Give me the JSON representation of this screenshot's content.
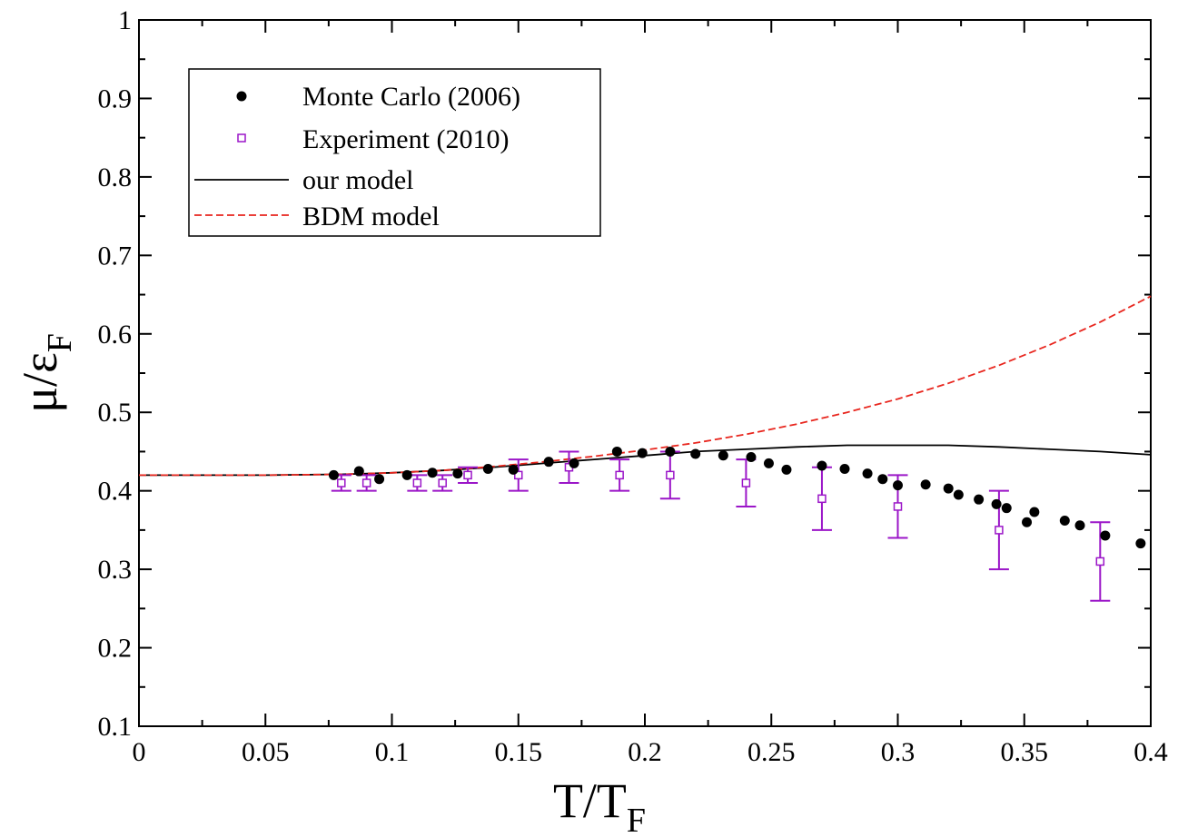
{
  "chart_data": {
    "type": "scatter",
    "xlabel": "T/T",
    "xlabel_sub": "F",
    "ylabel": "μ/ε",
    "ylabel_sub": "F",
    "xlim": [
      0,
      0.4
    ],
    "ylim": [
      0.1,
      1.0
    ],
    "xticks": [
      "0",
      "0.05",
      "0.1",
      "0.15",
      "0.2",
      "0.25",
      "0.3",
      "0.35",
      "0.4"
    ],
    "yticks": [
      "0.1",
      "0.2",
      "0.3",
      "0.4",
      "0.5",
      "0.6",
      "0.7",
      "0.8",
      "0.9",
      "1"
    ],
    "legend_position": "top-left",
    "grid": false,
    "series": [
      {
        "name": "Monte Carlo (2006)",
        "kind": "points",
        "color": "#000000",
        "x": [
          0.077,
          0.087,
          0.095,
          0.106,
          0.116,
          0.126,
          0.138,
          0.148,
          0.162,
          0.172,
          0.189,
          0.199,
          0.21,
          0.22,
          0.231,
          0.242,
          0.249,
          0.256,
          0.27,
          0.279,
          0.288,
          0.294,
          0.3,
          0.311,
          0.32,
          0.324,
          0.332,
          0.339,
          0.343,
          0.351,
          0.354,
          0.366,
          0.372,
          0.382,
          0.396
        ],
        "y": [
          0.42,
          0.425,
          0.415,
          0.42,
          0.423,
          0.422,
          0.428,
          0.427,
          0.437,
          0.435,
          0.45,
          0.448,
          0.45,
          0.447,
          0.445,
          0.443,
          0.435,
          0.427,
          0.432,
          0.428,
          0.422,
          0.415,
          0.407,
          0.408,
          0.403,
          0.395,
          0.389,
          0.383,
          0.378,
          0.36,
          0.373,
          0.362,
          0.356,
          0.343,
          0.333
        ]
      },
      {
        "name": "Experiment (2010)",
        "kind": "errorbars",
        "color": "#9b16c8",
        "x": [
          0.08,
          0.09,
          0.11,
          0.12,
          0.13,
          0.15,
          0.17,
          0.19,
          0.21,
          0.24,
          0.27,
          0.3,
          0.34,
          0.38
        ],
        "y": [
          0.41,
          0.41,
          0.41,
          0.41,
          0.42,
          0.42,
          0.43,
          0.42,
          0.42,
          0.41,
          0.39,
          0.38,
          0.35,
          0.31
        ],
        "err": [
          0.01,
          0.01,
          0.01,
          0.01,
          0.01,
          0.02,
          0.02,
          0.02,
          0.03,
          0.03,
          0.04,
          0.04,
          0.05,
          0.05
        ]
      },
      {
        "name": "our model",
        "kind": "line",
        "color": "#000000",
        "x": [
          0,
          0.05,
          0.08,
          0.1,
          0.12,
          0.14,
          0.16,
          0.18,
          0.2,
          0.22,
          0.24,
          0.26,
          0.28,
          0.3,
          0.32,
          0.34,
          0.36,
          0.38,
          0.4
        ],
        "y": [
          0.42,
          0.42,
          0.421,
          0.423,
          0.426,
          0.43,
          0.435,
          0.44,
          0.445,
          0.45,
          0.453,
          0.456,
          0.458,
          0.458,
          0.458,
          0.456,
          0.453,
          0.45,
          0.446
        ]
      },
      {
        "name": "BDM model",
        "kind": "dashed",
        "color": "#e8261e",
        "x": [
          0,
          0.05,
          0.08,
          0.1,
          0.12,
          0.14,
          0.16,
          0.18,
          0.2,
          0.22,
          0.24,
          0.26,
          0.28,
          0.3,
          0.32,
          0.34,
          0.36,
          0.38,
          0.4
        ],
        "y": [
          0.42,
          0.42,
          0.421,
          0.423,
          0.426,
          0.431,
          0.437,
          0.444,
          0.452,
          0.461,
          0.472,
          0.485,
          0.5,
          0.517,
          0.537,
          0.56,
          0.586,
          0.615,
          0.648
        ]
      }
    ]
  }
}
